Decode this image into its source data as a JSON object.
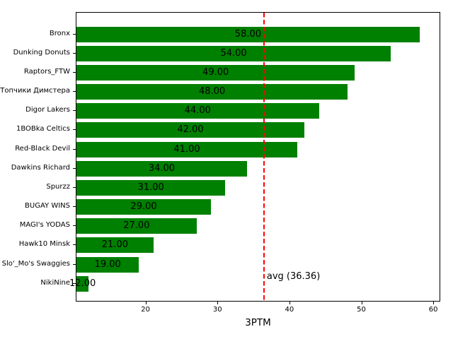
{
  "figure": {
    "background": "#ffffff",
    "border_color": "#000000"
  },
  "chart_data": {
    "type": "bar",
    "orientation": "horizontal",
    "title": "",
    "xlabel": "3PTM",
    "ylabel": "",
    "categories": [
      "Bronx",
      "Dunking Donuts",
      "Raptors_FTW",
      "Топчики Димстера",
      "Digor Lakers",
      "1BOBka Celtics",
      "Red-Black Devil",
      "Dawkins Richard",
      "Spurzz",
      "BUGAY WINS",
      "MAGI's YODAS",
      "Hawk10 Minsk",
      "Slo'_Mo's Swaggies",
      "NikiNine"
    ],
    "values": [
      58,
      54,
      49,
      48,
      44,
      42,
      41,
      34,
      31,
      29,
      27,
      21,
      19,
      12
    ],
    "value_labels": [
      "58.00",
      "54.00",
      "49.00",
      "48.00",
      "44.00",
      "42.00",
      "41.00",
      "34.00",
      "31.00",
      "29.00",
      "27.00",
      "21.00",
      "19.00",
      "12.00"
    ],
    "bar_color": "#008000",
    "label_color": "#000000",
    "xlim": [
      10.3,
      60.97
    ],
    "xticks": [
      20,
      30,
      40,
      50,
      60
    ],
    "xtick_labels": [
      "20",
      "30",
      "40",
      "50",
      "60"
    ],
    "grid": false,
    "legend": null,
    "avg_line": {
      "value": 36.36,
      "label": "avg (36.36)",
      "color": "#ff0000",
      "style": "dashed"
    }
  }
}
